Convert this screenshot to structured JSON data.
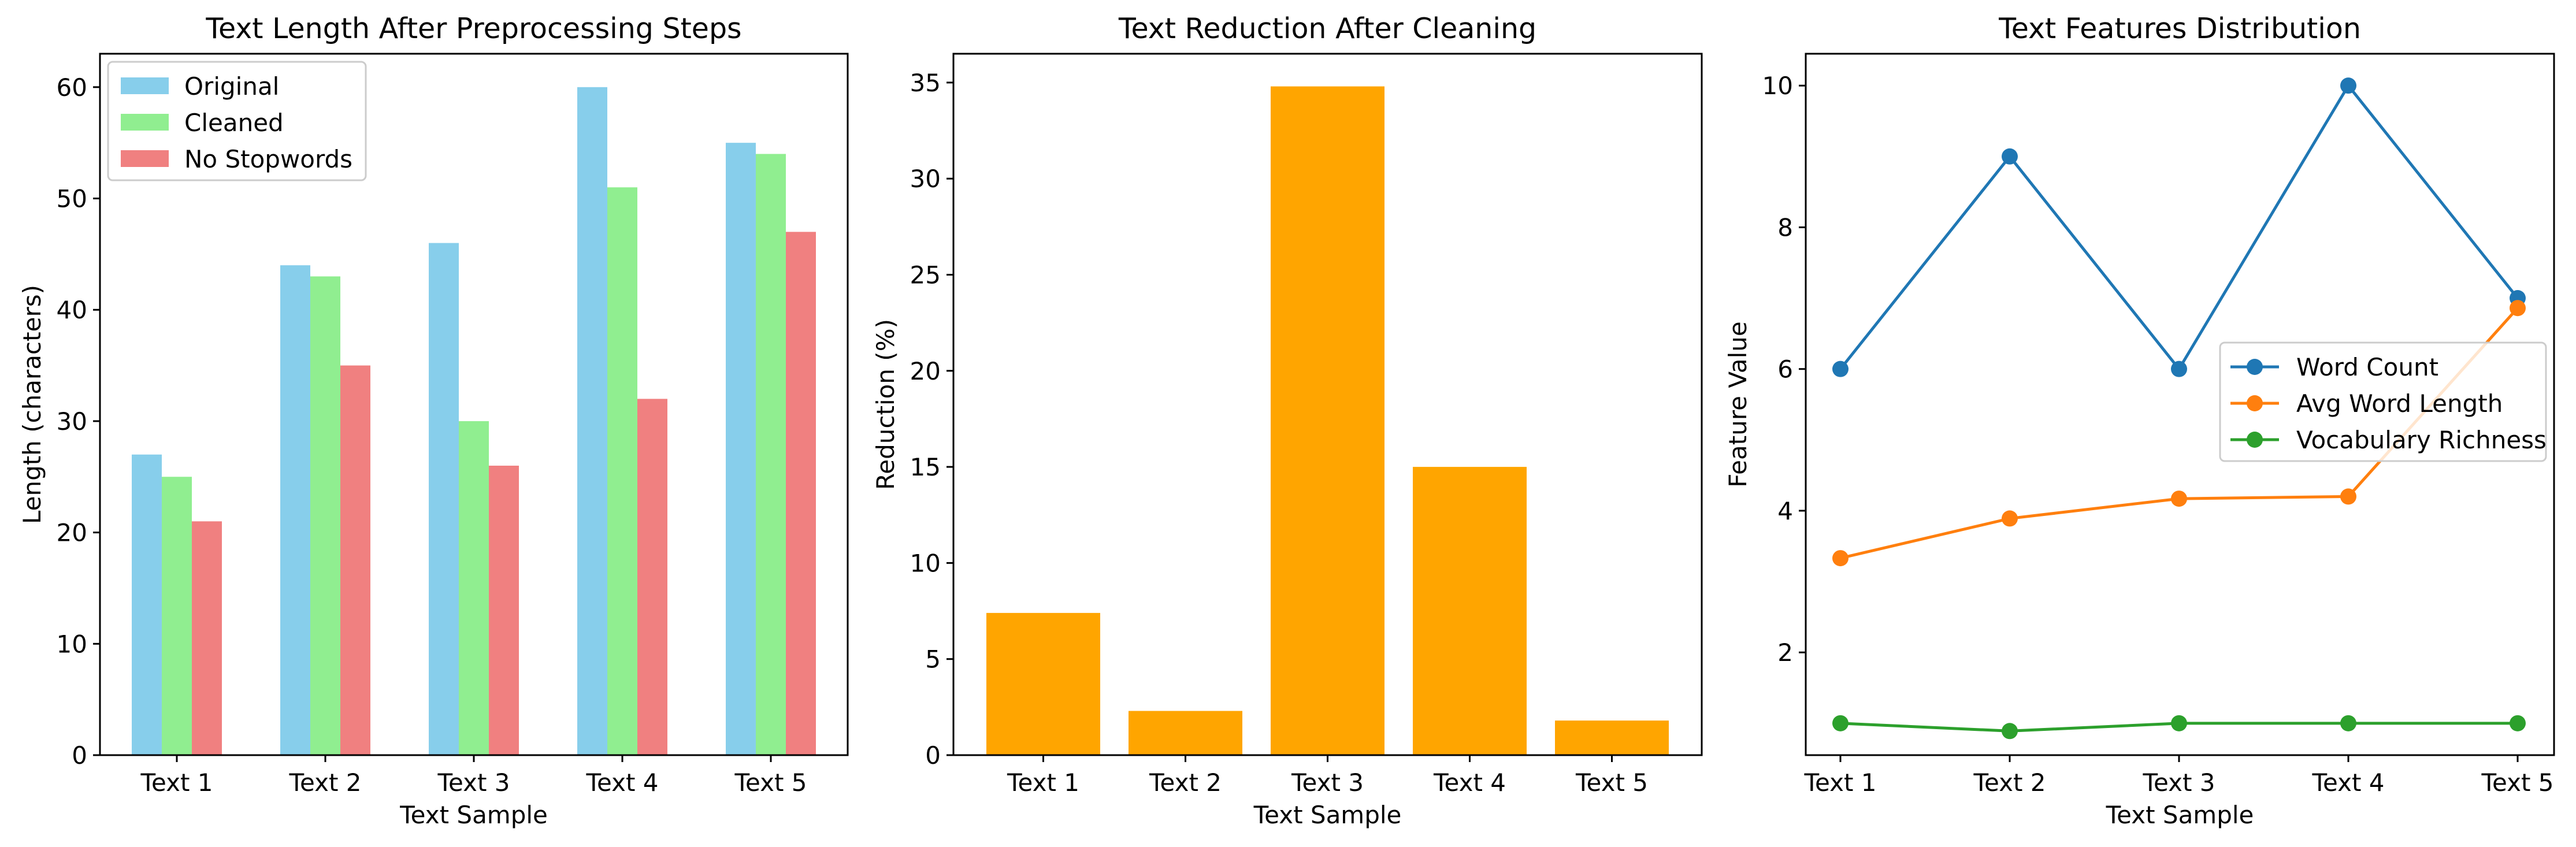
{
  "chart_data": [
    {
      "type": "bar",
      "title": "Text Length After Preprocessing Steps",
      "xlabel": "Text Sample",
      "ylabel": "Length (characters)",
      "categories": [
        "Text 1",
        "Text 2",
        "Text 3",
        "Text 4",
        "Text 5"
      ],
      "ylim": [
        0,
        63
      ],
      "yticks": [
        "0",
        "10",
        "20",
        "30",
        "40",
        "50",
        "60"
      ],
      "legend_position": "upper-left",
      "series": [
        {
          "name": "Original",
          "values": [
            27,
            44,
            46,
            60,
            55
          ],
          "color": "#87ceeb"
        },
        {
          "name": "Cleaned",
          "values": [
            25,
            43,
            30,
            51,
            54
          ],
          "color": "#90ee90"
        },
        {
          "name": "No Stopwords",
          "values": [
            21,
            35,
            26,
            32,
            47
          ],
          "color": "#f08080"
        }
      ]
    },
    {
      "type": "bar",
      "title": "Text Reduction After Cleaning",
      "xlabel": "Text Sample",
      "ylabel": "Reduction (%)",
      "categories": [
        "Text 1",
        "Text 2",
        "Text 3",
        "Text 4",
        "Text 5"
      ],
      "ylim": [
        0,
        36.5
      ],
      "yticks": [
        "0",
        "5",
        "10",
        "15",
        "20",
        "25",
        "30",
        "35"
      ],
      "series": [
        {
          "values": [
            7.4,
            2.3,
            34.8,
            15.0,
            1.8
          ],
          "color": "#ffa500"
        }
      ]
    },
    {
      "type": "line",
      "title": "Text Features Distribution",
      "xlabel": "Text Sample",
      "ylabel": "Feature Value",
      "categories": [
        "Text 1",
        "Text 2",
        "Text 3",
        "Text 4",
        "Text 5"
      ],
      "ylim": [
        0.55,
        10.45
      ],
      "yticks": [
        "2",
        "4",
        "6",
        "8",
        "10"
      ],
      "legend_position": "center-right",
      "series": [
        {
          "name": "Word Count",
          "values": [
            6,
            9,
            6,
            10,
            7
          ],
          "color": "#1f77b4"
        },
        {
          "name": "Avg Word Length",
          "values": [
            3.33,
            3.89,
            4.17,
            4.2,
            6.86
          ],
          "color": "#ff7f0e"
        },
        {
          "name": "Vocabulary Richness",
          "values": [
            1.0,
            0.89,
            1.0,
            1.0,
            1.0
          ],
          "color": "#2ca02c"
        }
      ]
    }
  ]
}
